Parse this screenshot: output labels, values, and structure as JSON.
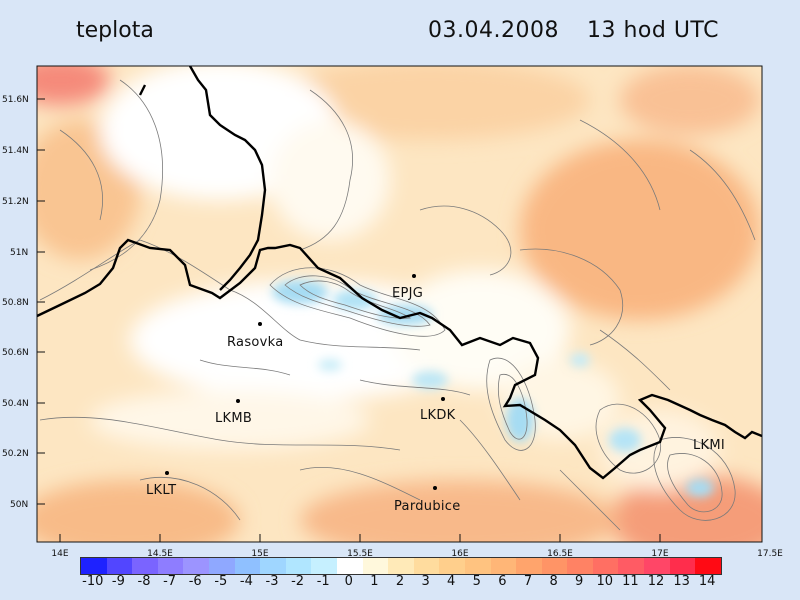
{
  "header": {
    "variable": "teplota",
    "date": "03.04.2008",
    "time": "13 hod UTC"
  },
  "axes": {
    "lat_ticks": [
      "51.6N",
      "51.4N",
      "51.2N",
      "51N",
      "50.8N",
      "50.6N",
      "50.4N",
      "50.2N",
      "50N"
    ],
    "lon_ticks": [
      "14E",
      "14.5E",
      "15E",
      "15.5E",
      "16E",
      "16.5E",
      "17E",
      "17.5E"
    ]
  },
  "stations": [
    {
      "id": "epjg",
      "name": "EPJG"
    },
    {
      "id": "rasovka",
      "name": "Rasovka"
    },
    {
      "id": "lkmb",
      "name": "LKMB"
    },
    {
      "id": "lkdk",
      "name": "LKDK"
    },
    {
      "id": "lkmi",
      "name": "LKMI"
    },
    {
      "id": "lklt",
      "name": "LKLT"
    },
    {
      "id": "pardubice",
      "name": "Pardubice"
    }
  ],
  "colorbar": {
    "labels": [
      "-10",
      "-9",
      "-8",
      "-7",
      "-6",
      "-5",
      "-4",
      "-3",
      "-2",
      "-1",
      "0",
      "1",
      "2",
      "3",
      "4",
      "5",
      "6",
      "7",
      "8",
      "9",
      "10",
      "11",
      "12",
      "13",
      "14"
    ],
    "colors": [
      "#1e22ff",
      "#5246ff",
      "#7a64ff",
      "#8e7dff",
      "#9c94ff",
      "#8fa8ff",
      "#8fc0ff",
      "#9fd6ff",
      "#b0e6ff",
      "#c6f0ff",
      "#ffffff",
      "#fff8dc",
      "#ffeab8",
      "#ffdc9e",
      "#ffcf8c",
      "#ffc380",
      "#ffb677",
      "#ffa46c",
      "#ff9466",
      "#ff8264",
      "#ff6f63",
      "#ff5b64",
      "#ff4667",
      "#ff2d4c",
      "#ff0a14"
    ]
  }
}
